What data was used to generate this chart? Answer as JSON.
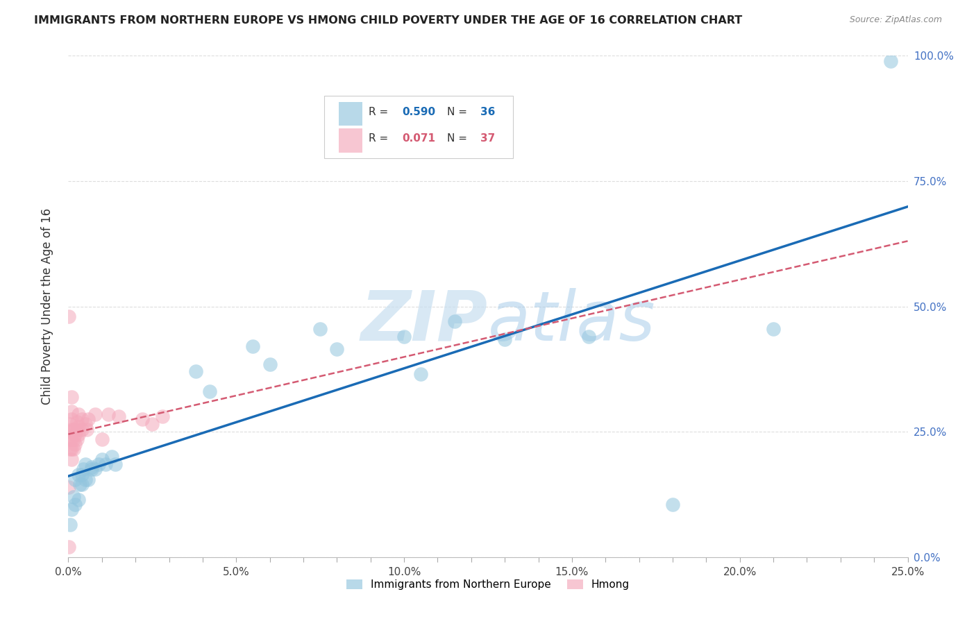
{
  "title": "IMMIGRANTS FROM NORTHERN EUROPE VS HMONG CHILD POVERTY UNDER THE AGE OF 16 CORRELATION CHART",
  "source": "Source: ZipAtlas.com",
  "ylabel": "Child Poverty Under the Age of 16",
  "xlim": [
    0,
    0.25
  ],
  "ylim": [
    0,
    1.0
  ],
  "legend_label1": "Immigrants from Northern Europe",
  "legend_label2": "Hmong",
  "R1": "0.590",
  "N1": "36",
  "R2": "0.071",
  "N2": "37",
  "blue_color": "#92c5de",
  "pink_color": "#f4a8bb",
  "trendline_blue": "#1a6bb5",
  "trendline_pink": "#d45a72",
  "watermark_color": "#c8dff0",
  "blue_points": [
    [
      0.0005,
      0.065
    ],
    [
      0.001,
      0.095
    ],
    [
      0.0015,
      0.12
    ],
    [
      0.002,
      0.105
    ],
    [
      0.002,
      0.155
    ],
    [
      0.003,
      0.115
    ],
    [
      0.003,
      0.165
    ],
    [
      0.0035,
      0.145
    ],
    [
      0.004,
      0.145
    ],
    [
      0.004,
      0.165
    ],
    [
      0.0045,
      0.175
    ],
    [
      0.005,
      0.185
    ],
    [
      0.005,
      0.155
    ],
    [
      0.006,
      0.155
    ],
    [
      0.007,
      0.175
    ],
    [
      0.007,
      0.18
    ],
    [
      0.008,
      0.175
    ],
    [
      0.009,
      0.185
    ],
    [
      0.01,
      0.195
    ],
    [
      0.011,
      0.185
    ],
    [
      0.013,
      0.2
    ],
    [
      0.014,
      0.185
    ],
    [
      0.038,
      0.37
    ],
    [
      0.042,
      0.33
    ],
    [
      0.055,
      0.42
    ],
    [
      0.06,
      0.385
    ],
    [
      0.075,
      0.455
    ],
    [
      0.08,
      0.415
    ],
    [
      0.1,
      0.44
    ],
    [
      0.105,
      0.365
    ],
    [
      0.115,
      0.47
    ],
    [
      0.13,
      0.435
    ],
    [
      0.155,
      0.44
    ],
    [
      0.18,
      0.105
    ],
    [
      0.21,
      0.455
    ],
    [
      0.245,
      0.99
    ]
  ],
  "pink_points": [
    [
      0.0001,
      0.02
    ],
    [
      0.0001,
      0.48
    ],
    [
      0.0001,
      0.14
    ],
    [
      0.0005,
      0.215
    ],
    [
      0.0005,
      0.235
    ],
    [
      0.0005,
      0.25
    ],
    [
      0.0005,
      0.265
    ],
    [
      0.001,
      0.195
    ],
    [
      0.001,
      0.215
    ],
    [
      0.001,
      0.235
    ],
    [
      0.001,
      0.255
    ],
    [
      0.001,
      0.275
    ],
    [
      0.001,
      0.29
    ],
    [
      0.001,
      0.32
    ],
    [
      0.0015,
      0.215
    ],
    [
      0.0015,
      0.235
    ],
    [
      0.0015,
      0.255
    ],
    [
      0.002,
      0.225
    ],
    [
      0.002,
      0.245
    ],
    [
      0.0025,
      0.235
    ],
    [
      0.0025,
      0.255
    ],
    [
      0.0025,
      0.27
    ],
    [
      0.003,
      0.245
    ],
    [
      0.003,
      0.26
    ],
    [
      0.003,
      0.285
    ],
    [
      0.004,
      0.255
    ],
    [
      0.004,
      0.275
    ],
    [
      0.005,
      0.265
    ],
    [
      0.0055,
      0.255
    ],
    [
      0.006,
      0.275
    ],
    [
      0.008,
      0.285
    ],
    [
      0.01,
      0.235
    ],
    [
      0.012,
      0.285
    ],
    [
      0.015,
      0.28
    ],
    [
      0.022,
      0.275
    ],
    [
      0.025,
      0.265
    ],
    [
      0.028,
      0.28
    ]
  ]
}
